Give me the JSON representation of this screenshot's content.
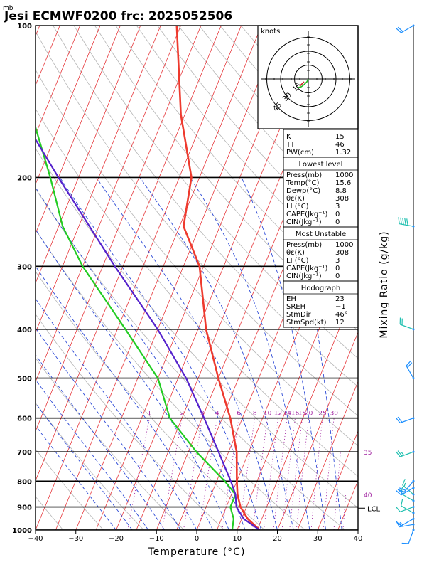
{
  "header": {
    "unit_label": "mb",
    "title": "Jesi ECMWF0200  frc: 2025052506"
  },
  "chart_data": {
    "type": "line",
    "xlabel": "Temperature (°C)",
    "ylabel": "",
    "right_axis_label": "Mixing Ratio (g/kg)",
    "xlim": [
      -40,
      40
    ],
    "ylim": [
      1000,
      100
    ],
    "x_ticks": [
      -40,
      -30,
      -20,
      -10,
      0,
      10,
      20,
      30,
      40
    ],
    "pressure_ticks": [
      100,
      200,
      300,
      400,
      500,
      600,
      700,
      800,
      900,
      1000
    ],
    "grid": true,
    "colors": {
      "temperature": "#ee3a2e",
      "dewpoint": "#22cc22",
      "parcel": "#5522cc",
      "isotherm": "#e6363a",
      "dry_adiabat": "#b5b5b5",
      "moist_adiabat": "#2d4ad6",
      "mixing_ratio": "#a020a0",
      "isobar": "#000000"
    },
    "series": [
      {
        "name": "",
        "role": "temperature",
        "points": [
          [
            1000,
            15.6
          ],
          [
            950,
            11.5
          ],
          [
            900,
            8.5
          ],
          [
            850,
            6.5
          ],
          [
            800,
            5
          ],
          [
            700,
            2
          ],
          [
            600,
            -3
          ],
          [
            500,
            -10
          ],
          [
            400,
            -18
          ],
          [
            300,
            -26
          ],
          [
            250,
            -34
          ],
          [
            200,
            -37
          ],
          [
            150,
            -46
          ],
          [
            100,
            -56
          ]
        ]
      },
      {
        "name": "",
        "role": "dewpoint",
        "points": [
          [
            1000,
            8.8
          ],
          [
            950,
            8
          ],
          [
            900,
            6
          ],
          [
            850,
            6
          ],
          [
            800,
            2
          ],
          [
            700,
            -8
          ],
          [
            600,
            -18
          ],
          [
            500,
            -25
          ],
          [
            400,
            -38
          ],
          [
            300,
            -55
          ],
          [
            250,
            -64
          ],
          [
            200,
            -72
          ],
          [
            150,
            -83
          ],
          [
            100,
            -96
          ]
        ]
      },
      {
        "name": "",
        "role": "parcel",
        "points": [
          [
            1000,
            15.6
          ],
          [
            950,
            10.5
          ],
          [
            900,
            7.5
          ],
          [
            850,
            6
          ],
          [
            800,
            3.5
          ],
          [
            700,
            -2.5
          ],
          [
            600,
            -9.5
          ],
          [
            500,
            -18
          ],
          [
            400,
            -30
          ],
          [
            300,
            -47
          ],
          [
            200,
            -70
          ],
          [
            100,
            -108
          ]
        ]
      }
    ],
    "mixing_ratio_labels": [
      {
        "text": "1",
        "value": 1,
        "p0": 600
      },
      {
        "text": "2",
        "value": 2,
        "p0": 600
      },
      {
        "text": "3",
        "value": 3,
        "p0": 600
      },
      {
        "text": "4",
        "value": 4,
        "p0": 600
      },
      {
        "text": "6",
        "value": 6,
        "p0": 600
      },
      {
        "text": "8",
        "value": 8,
        "p0": 600
      },
      {
        "text": "10",
        "value": 10,
        "p0": 600
      },
      {
        "text": "12",
        "value": 12,
        "p0": 600
      },
      {
        "text": "14",
        "value": 14,
        "p0": 600
      },
      {
        "text": "16",
        "value": 16,
        "p0": 600
      },
      {
        "text": "18",
        "value": 18,
        "p0": 600
      },
      {
        "text": "20",
        "value": 20,
        "p0": 600
      },
      {
        "text": "25",
        "value": 25,
        "p0": 600
      },
      {
        "text": "30",
        "value": 30,
        "p0": 600
      },
      {
        "text": "35",
        "value": 35,
        "p0": 700
      },
      {
        "text": "40",
        "value": 40,
        "p0": 850
      }
    ],
    "lcl_label": "LCL",
    "lcl_pressure": 905,
    "hodograph": {
      "units_label": "knots",
      "ring_labels": [
        "15",
        "30",
        "45"
      ],
      "ring_values": [
        15,
        30,
        45
      ],
      "trace": [
        [
          0,
          0
        ],
        [
          -2,
          -4
        ],
        [
          -6,
          -8
        ],
        [
          -10,
          -11
        ],
        [
          -14,
          -12
        ]
      ]
    },
    "indices": {
      "top": [
        {
          "label": "K",
          "value": "15"
        },
        {
          "label": "TT",
          "value": "46"
        },
        {
          "label": "PW(cm)",
          "value": "1.32"
        }
      ],
      "lowest_level": {
        "title": "Lowest level",
        "rows": [
          {
            "label": "Press(mb)",
            "value": "1000"
          },
          {
            "label": "Temp(°C)",
            "value": "15.6"
          },
          {
            "label": "Dewp(°C)",
            "value": "8.8"
          },
          {
            "label": "θε(K)",
            "value": "308"
          },
          {
            "label": "LI (°C)",
            "value": "3"
          },
          {
            "label": "CAPE(Jkg⁻¹)",
            "value": "0"
          },
          {
            "label": "CIN(Jkg⁻¹)",
            "value": "0"
          }
        ]
      },
      "most_unstable": {
        "title": "Most Unstable",
        "rows": [
          {
            "label": "Press(mb)",
            "value": "1000"
          },
          {
            "label": "θε(K)",
            "value": "308"
          },
          {
            "label": "LI (°C)",
            "value": "3"
          },
          {
            "label": "CAPE(Jkg⁻¹)",
            "value": "0"
          },
          {
            "label": "CIN(Jkg⁻¹)",
            "value": "0"
          }
        ]
      },
      "hodograph_block": {
        "title": "Hodograph",
        "rows": [
          {
            "label": "EH",
            "value": "23"
          },
          {
            "label": "SREH",
            "value": "−1"
          },
          {
            "label": "StmDir",
            "value": "46°"
          },
          {
            "label": "StmSpd(kt)",
            "value": "12"
          }
        ]
      }
    },
    "wind_barbs": [
      {
        "p": 1000,
        "dir": 200,
        "speed": 10,
        "color": "#1e90ff"
      },
      {
        "p": 975,
        "dir": 260,
        "speed": 15,
        "color": "#1e90ff"
      },
      {
        "p": 950,
        "dir": 240,
        "speed": 15,
        "color": "#1e90ff"
      },
      {
        "p": 925,
        "dir": 300,
        "speed": 10,
        "color": "#20c0b0"
      },
      {
        "p": 900,
        "dir": 250,
        "speed": 10,
        "color": "#20c0b0"
      },
      {
        "p": 875,
        "dir": 300,
        "speed": 15,
        "color": "#20c0b0"
      },
      {
        "p": 850,
        "dir": 310,
        "speed": 15,
        "color": "#20c0b0"
      },
      {
        "p": 825,
        "dir": 240,
        "speed": 20,
        "color": "#1e90ff"
      },
      {
        "p": 800,
        "dir": 220,
        "speed": 20,
        "color": "#1e90ff"
      },
      {
        "p": 700,
        "dir": 250,
        "speed": 25,
        "color": "#20c0b0"
      },
      {
        "p": 600,
        "dir": 250,
        "speed": 20,
        "color": "#1e90ff"
      },
      {
        "p": 500,
        "dir": 330,
        "speed": 20,
        "color": "#1e90ff"
      },
      {
        "p": 400,
        "dir": 290,
        "speed": 20,
        "color": "#20c0b0"
      },
      {
        "p": 250,
        "dir": 280,
        "speed": 50,
        "color": "#20c0b0"
      },
      {
        "p": 100,
        "dir": 240,
        "speed": 20,
        "color": "#1e90ff"
      }
    ]
  }
}
